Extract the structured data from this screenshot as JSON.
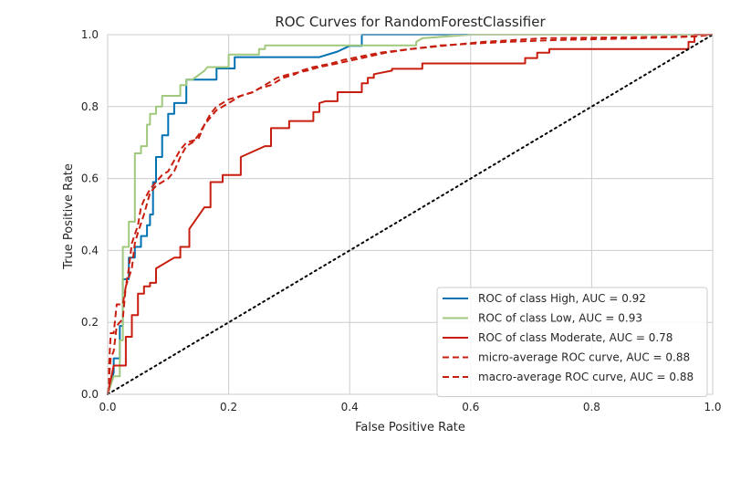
{
  "chart_data": {
    "type": "line",
    "title": "ROC Curves for RandomForestClassifier",
    "xlabel": "False Positive Rate",
    "ylabel": "True Positive Rate",
    "xlim": [
      0,
      1
    ],
    "ylim": [
      0,
      1
    ],
    "xticks": [
      "0.0",
      "0.2",
      "0.4",
      "0.6",
      "0.8",
      "1.0"
    ],
    "yticks": [
      "0.0",
      "0.2",
      "0.4",
      "0.6",
      "0.8",
      "1.0"
    ],
    "grid": true,
    "legend_position": "lower-right",
    "series": [
      {
        "name": "ROC of class High, AUC = 0.92",
        "color": "#0072b2",
        "style": "solid",
        "points": [
          [
            0,
            0
          ],
          [
            0.01,
            0.06
          ],
          [
            0.01,
            0.1
          ],
          [
            0.02,
            0.1
          ],
          [
            0.02,
            0.19
          ],
          [
            0.025,
            0.19
          ],
          [
            0.025,
            0.32
          ],
          [
            0.035,
            0.32
          ],
          [
            0.035,
            0.38
          ],
          [
            0.045,
            0.38
          ],
          [
            0.045,
            0.41
          ],
          [
            0.055,
            0.41
          ],
          [
            0.055,
            0.44
          ],
          [
            0.065,
            0.44
          ],
          [
            0.065,
            0.47
          ],
          [
            0.07,
            0.47
          ],
          [
            0.07,
            0.5
          ],
          [
            0.075,
            0.5
          ],
          [
            0.075,
            0.59
          ],
          [
            0.08,
            0.59
          ],
          [
            0.08,
            0.66
          ],
          [
            0.09,
            0.66
          ],
          [
            0.09,
            0.72
          ],
          [
            0.1,
            0.72
          ],
          [
            0.1,
            0.78
          ],
          [
            0.11,
            0.78
          ],
          [
            0.11,
            0.81
          ],
          [
            0.12,
            0.81
          ],
          [
            0.12,
            0.81
          ],
          [
            0.13,
            0.81
          ],
          [
            0.13,
            0.875
          ],
          [
            0.18,
            0.875
          ],
          [
            0.18,
            0.906
          ],
          [
            0.2,
            0.906
          ],
          [
            0.2,
            0.906
          ],
          [
            0.21,
            0.906
          ],
          [
            0.21,
            0.9375
          ],
          [
            0.35,
            0.9375
          ],
          [
            0.38,
            0.953
          ],
          [
            0.4,
            0.969
          ],
          [
            0.42,
            0.969
          ],
          [
            0.42,
            1.0
          ],
          [
            0.5,
            1.0
          ],
          [
            0.6,
            1.0
          ],
          [
            1.0,
            1.0
          ]
        ]
      },
      {
        "name": "ROC of class Low, AUC = 0.93",
        "color": "#a1c97e",
        "style": "solid",
        "points": [
          [
            0,
            0
          ],
          [
            0.01,
            0.05
          ],
          [
            0.02,
            0.05
          ],
          [
            0.02,
            0.15
          ],
          [
            0.025,
            0.15
          ],
          [
            0.025,
            0.41
          ],
          [
            0.035,
            0.41
          ],
          [
            0.035,
            0.48
          ],
          [
            0.045,
            0.48
          ],
          [
            0.045,
            0.67
          ],
          [
            0.055,
            0.67
          ],
          [
            0.055,
            0.69
          ],
          [
            0.065,
            0.69
          ],
          [
            0.065,
            0.75
          ],
          [
            0.07,
            0.75
          ],
          [
            0.07,
            0.78
          ],
          [
            0.08,
            0.78
          ],
          [
            0.08,
            0.8
          ],
          [
            0.09,
            0.8
          ],
          [
            0.09,
            0.83
          ],
          [
            0.11,
            0.83
          ],
          [
            0.11,
            0.83
          ],
          [
            0.12,
            0.83
          ],
          [
            0.12,
            0.86
          ],
          [
            0.13,
            0.86
          ],
          [
            0.13,
            0.875
          ],
          [
            0.14,
            0.875
          ],
          [
            0.16,
            0.9
          ],
          [
            0.165,
            0.91
          ],
          [
            0.2,
            0.91
          ],
          [
            0.2,
            0.945
          ],
          [
            0.25,
            0.945
          ],
          [
            0.25,
            0.96
          ],
          [
            0.26,
            0.96
          ],
          [
            0.26,
            0.97
          ],
          [
            0.43,
            0.97
          ],
          [
            0.43,
            0.97
          ],
          [
            0.51,
            0.97
          ],
          [
            0.51,
            0.98
          ],
          [
            0.52,
            0.99
          ],
          [
            0.6,
            1.0
          ],
          [
            1.0,
            1.0
          ]
        ]
      },
      {
        "name": "ROC of class Moderate, AUC = 0.78",
        "color": "#c81e0f",
        "style": "solid",
        "points": [
          [
            0,
            0
          ],
          [
            0.01,
            0.08
          ],
          [
            0.03,
            0.08
          ],
          [
            0.03,
            0.16
          ],
          [
            0.04,
            0.16
          ],
          [
            0.04,
            0.22
          ],
          [
            0.05,
            0.22
          ],
          [
            0.05,
            0.28
          ],
          [
            0.06,
            0.28
          ],
          [
            0.06,
            0.3
          ],
          [
            0.07,
            0.3
          ],
          [
            0.07,
            0.31
          ],
          [
            0.08,
            0.31
          ],
          [
            0.08,
            0.35
          ],
          [
            0.11,
            0.38
          ],
          [
            0.12,
            0.38
          ],
          [
            0.12,
            0.41
          ],
          [
            0.13,
            0.41
          ],
          [
            0.13,
            0.41
          ],
          [
            0.135,
            0.41
          ],
          [
            0.135,
            0.46
          ],
          [
            0.16,
            0.52
          ],
          [
            0.17,
            0.52
          ],
          [
            0.17,
            0.59
          ],
          [
            0.18,
            0.59
          ],
          [
            0.19,
            0.59
          ],
          [
            0.19,
            0.61
          ],
          [
            0.22,
            0.61
          ],
          [
            0.22,
            0.66
          ],
          [
            0.26,
            0.69
          ],
          [
            0.27,
            0.69
          ],
          [
            0.27,
            0.74
          ],
          [
            0.3,
            0.74
          ],
          [
            0.3,
            0.76
          ],
          [
            0.34,
            0.76
          ],
          [
            0.34,
            0.785
          ],
          [
            0.35,
            0.785
          ],
          [
            0.35,
            0.81
          ],
          [
            0.36,
            0.815
          ],
          [
            0.38,
            0.815
          ],
          [
            0.38,
            0.84
          ],
          [
            0.42,
            0.84
          ],
          [
            0.42,
            0.865
          ],
          [
            0.43,
            0.865
          ],
          [
            0.43,
            0.88
          ],
          [
            0.44,
            0.88
          ],
          [
            0.44,
            0.89
          ],
          [
            0.47,
            0.9
          ],
          [
            0.47,
            0.905
          ],
          [
            0.52,
            0.905
          ],
          [
            0.52,
            0.92
          ],
          [
            0.69,
            0.92
          ],
          [
            0.69,
            0.935
          ],
          [
            0.71,
            0.935
          ],
          [
            0.71,
            0.95
          ],
          [
            0.73,
            0.95
          ],
          [
            0.73,
            0.96
          ],
          [
            0.96,
            0.96
          ],
          [
            0.96,
            0.98
          ],
          [
            0.97,
            0.98
          ],
          [
            0.97,
            1.0
          ],
          [
            1.0,
            1.0
          ]
        ]
      },
      {
        "name": "micro-average ROC curve, AUC = 0.88",
        "color": "#c81e0f",
        "style": "dashed",
        "points": [
          [
            0,
            0
          ],
          [
            0.005,
            0.17
          ],
          [
            0.01,
            0.17
          ],
          [
            0.015,
            0.25
          ],
          [
            0.025,
            0.25
          ],
          [
            0.03,
            0.3
          ],
          [
            0.035,
            0.35
          ],
          [
            0.04,
            0.42
          ],
          [
            0.05,
            0.47
          ],
          [
            0.055,
            0.52
          ],
          [
            0.06,
            0.54
          ],
          [
            0.07,
            0.57
          ],
          [
            0.08,
            0.59
          ],
          [
            0.09,
            0.61
          ],
          [
            0.1,
            0.62
          ],
          [
            0.11,
            0.65
          ],
          [
            0.12,
            0.68
          ],
          [
            0.13,
            0.7
          ],
          [
            0.15,
            0.71
          ],
          [
            0.16,
            0.75
          ],
          [
            0.17,
            0.78
          ],
          [
            0.18,
            0.8
          ],
          [
            0.2,
            0.82
          ],
          [
            0.22,
            0.83
          ],
          [
            0.24,
            0.84
          ],
          [
            0.25,
            0.85
          ],
          [
            0.27,
            0.86
          ],
          [
            0.29,
            0.88
          ],
          [
            0.31,
            0.89
          ],
          [
            0.32,
            0.9
          ],
          [
            0.34,
            0.91
          ],
          [
            0.37,
            0.92
          ],
          [
            0.39,
            0.93
          ],
          [
            0.42,
            0.94
          ],
          [
            0.45,
            0.95
          ],
          [
            0.5,
            0.96
          ],
          [
            0.55,
            0.97
          ],
          [
            0.6,
            0.975
          ],
          [
            0.66,
            0.98
          ],
          [
            0.74,
            0.985
          ],
          [
            0.88,
            0.99
          ],
          [
            0.97,
            0.995
          ],
          [
            1.0,
            1.0
          ]
        ]
      },
      {
        "name": "macro-average ROC curve, AUC = 0.88",
        "color": "#c81e0f",
        "style": "dashed",
        "points": [
          [
            0,
            0
          ],
          [
            0.005,
            0.1
          ],
          [
            0.01,
            0.12
          ],
          [
            0.015,
            0.19
          ],
          [
            0.025,
            0.21
          ],
          [
            0.03,
            0.3
          ],
          [
            0.04,
            0.35
          ],
          [
            0.045,
            0.42
          ],
          [
            0.05,
            0.45
          ],
          [
            0.06,
            0.5
          ],
          [
            0.065,
            0.53
          ],
          [
            0.07,
            0.56
          ],
          [
            0.08,
            0.58
          ],
          [
            0.09,
            0.59
          ],
          [
            0.1,
            0.6
          ],
          [
            0.11,
            0.62
          ],
          [
            0.12,
            0.66
          ],
          [
            0.13,
            0.69
          ],
          [
            0.14,
            0.7
          ],
          [
            0.15,
            0.72
          ],
          [
            0.16,
            0.75
          ],
          [
            0.17,
            0.77
          ],
          [
            0.18,
            0.79
          ],
          [
            0.2,
            0.81
          ],
          [
            0.22,
            0.83
          ],
          [
            0.24,
            0.84
          ],
          [
            0.26,
            0.86
          ],
          [
            0.28,
            0.88
          ],
          [
            0.3,
            0.89
          ],
          [
            0.33,
            0.9
          ],
          [
            0.35,
            0.91
          ],
          [
            0.38,
            0.92
          ],
          [
            0.42,
            0.935
          ],
          [
            0.46,
            0.95
          ],
          [
            0.5,
            0.96
          ],
          [
            0.56,
            0.97
          ],
          [
            0.62,
            0.98
          ],
          [
            0.72,
            0.99
          ],
          [
            0.86,
            0.993
          ],
          [
            0.96,
            0.995
          ],
          [
            1.0,
            1.0
          ]
        ]
      },
      {
        "name": "",
        "color": "#000000",
        "style": "dotted",
        "points": [
          [
            0,
            0
          ],
          [
            1,
            1
          ]
        ]
      }
    ]
  }
}
